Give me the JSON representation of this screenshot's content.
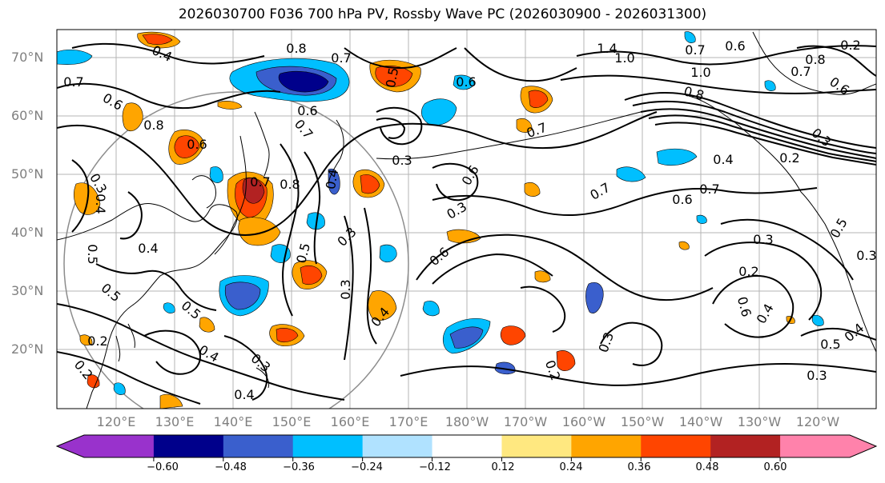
{
  "title": "2026030700 F036 700 hPa PV, Rossby Wave PC (2026030900 - 2026031300)",
  "map": {
    "region": "North Pacific",
    "lat_labels": [
      "70°N",
      "60°N",
      "50°N",
      "40°N",
      "30°N",
      "20°N"
    ],
    "lon_labels": [
      "120°E",
      "130°E",
      "140°E",
      "150°E",
      "160°E",
      "170°E",
      "180°W",
      "170°W",
      "160°W",
      "150°W",
      "140°W",
      "130°W",
      "120°W"
    ],
    "contour_labels": [
      "0.4",
      "0.8",
      "0.7",
      "0.5",
      "0.6",
      "1.4",
      "1.0",
      "0.7",
      "0.6",
      "0.8",
      "0.7",
      "0.6",
      "0.2",
      "0.7",
      "0.6",
      "1.0",
      "0.8",
      "0.6",
      "0.7",
      "0.8",
      "0.6",
      "0.7",
      "0.4",
      "0.2",
      "0.3",
      "0.7",
      "0.6",
      "0.4",
      "0.4",
      "0.3",
      "0.6",
      "0.7",
      "0.6",
      "0.7",
      "0.3",
      "0.4",
      "0.8",
      "0.3",
      "0.5",
      "0.5",
      "0.3",
      "0.3",
      "0.6",
      "0.5",
      "0.3",
      "0.2",
      "0.5",
      "0.4",
      "0.4",
      "0.3",
      "0.5",
      "0.4",
      "0.2",
      "0.5",
      "0.4",
      "0.2",
      "0.3",
      "0.3",
      "0.2",
      "0.3",
      "0.4"
    ]
  },
  "colors": {
    "purple": "#9932cc",
    "navy": "#00008b",
    "royal_blue": "#3a5fcd",
    "deep_sky": "#00bfff",
    "light_blue": "#b0e2ff",
    "white": "#ffffff",
    "light_yellow": "#ffe880",
    "orange": "#ffa500",
    "orange_red": "#ff4500",
    "firebrick": "#b22222",
    "pink": "#ff82ab"
  },
  "colorbar": {
    "colors": [
      "#9932cc",
      "#00008b",
      "#3a5fcd",
      "#00bfff",
      "#b0e2ff",
      "#ffffff",
      "#ffe880",
      "#ffa500",
      "#ff4500",
      "#b22222",
      "#ff82ab"
    ],
    "ticks": [
      "−0.60",
      "−0.48",
      "−0.36",
      "−0.24",
      "−0.12",
      "0.12",
      "0.24",
      "0.36",
      "0.48",
      "0.60"
    ]
  }
}
